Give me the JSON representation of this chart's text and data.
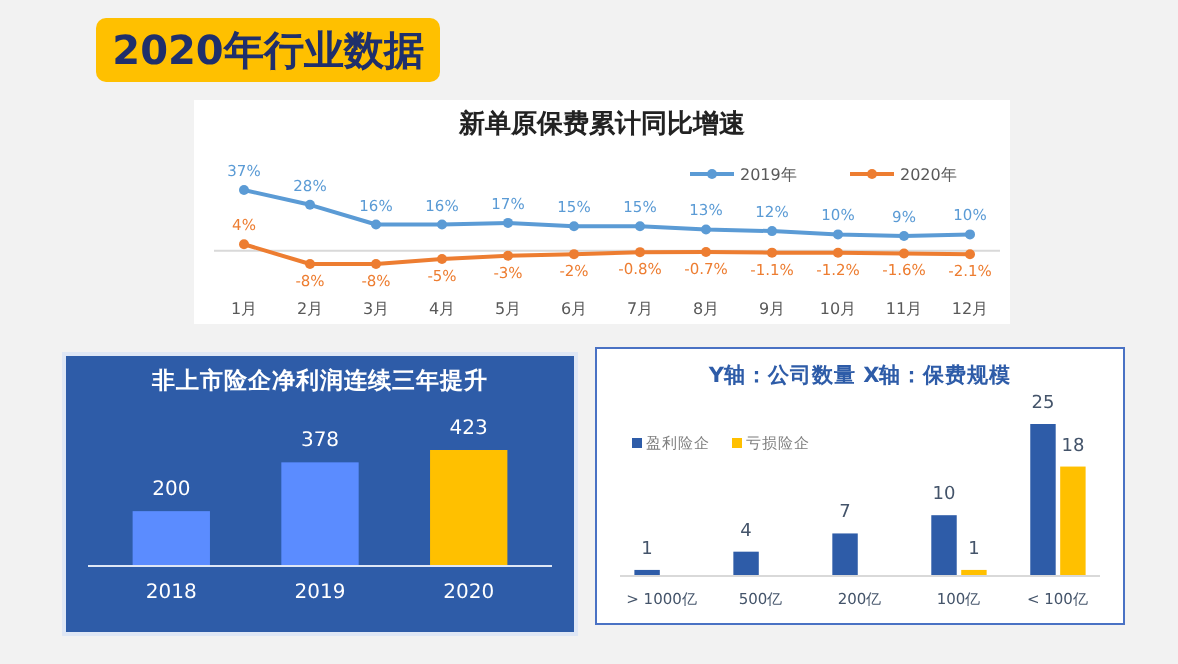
{
  "chart_data": [
    {
      "type": "other",
      "title": "2020年行业数据"
    },
    {
      "type": "line",
      "title": "新单原保费累计同比增速",
      "categories": [
        "1月",
        "2月",
        "3月",
        "4月",
        "5月",
        "6月",
        "7月",
        "8月",
        "9月",
        "10月",
        "11月",
        "12月"
      ],
      "series": [
        {
          "name": "2019年",
          "color": "#5b9bd5",
          "values": [
            37,
            28,
            16,
            16,
            17,
            15,
            15,
            13,
            12,
            10,
            9,
            10
          ],
          "value_labels": [
            "37%",
            "28%",
            "16%",
            "16%",
            "17%",
            "15%",
            "15%",
            "13%",
            "12%",
            "10%",
            "9%",
            "10%"
          ]
        },
        {
          "name": "2020年",
          "color": "#ed7d31",
          "values": [
            4,
            -8,
            -8,
            -5,
            -3,
            -2,
            -0.8,
            -0.7,
            -1.1,
            -1.2,
            -1.6,
            -2.1
          ],
          "value_labels": [
            "4%",
            "-8%",
            "-8%",
            "-5%",
            "-3%",
            "-2%",
            "-0.8%",
            "-0.7%",
            "-1.1%",
            "-1.2%",
            "-1.6%",
            "-2.1%"
          ]
        }
      ],
      "legend": "top right",
      "marker": "circle"
    },
    {
      "type": "bar",
      "title": "非上市险企净利润连续三年提升",
      "categories": [
        "2018",
        "2019",
        "2020"
      ],
      "values": [
        200,
        378,
        423
      ],
      "colors": [
        "#5b8cff",
        "#5b8cff",
        "#ffc000"
      ],
      "data_labels": true
    },
    {
      "type": "bar",
      "title": "Y轴：公司数量    X轴：保费规模",
      "categories": [
        "> 1000亿",
        "500亿",
        "200亿",
        "100亿",
        "< 100亿"
      ],
      "series": [
        {
          "name": "盈利险企",
          "color": "#2e5ca8",
          "values": [
            1,
            4,
            7,
            10,
            25
          ]
        },
        {
          "name": "亏损险企",
          "color": "#ffc000",
          "values": [
            null,
            null,
            null,
            1,
            18
          ]
        }
      ],
      "data_labels": true,
      "legend": "top left"
    }
  ]
}
